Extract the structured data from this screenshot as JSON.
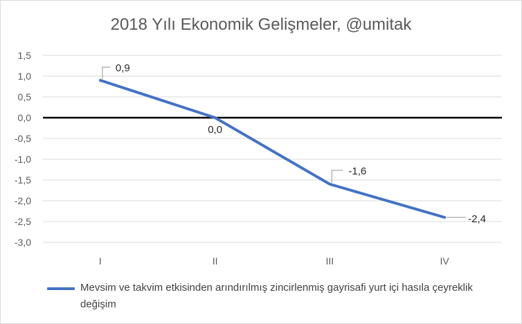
{
  "chart_data": {
    "type": "line",
    "title": "2018 Yılı Ekonomik  Gelişmeler, @umitak",
    "categories": [
      "I",
      "II",
      "III",
      "IV"
    ],
    "series": [
      {
        "name": "Mevsim ve takvim etkisinden arındırılmış zincirlenmiş gayrisafi yurt içi hasıla çeyreklik değişim",
        "values": [
          0.9,
          0.0,
          -1.6,
          -2.4
        ],
        "value_labels": [
          "0,9",
          "0,0",
          "-1,6",
          "-2,4"
        ],
        "color": "#4472c4"
      }
    ],
    "ylim": [
      -3.0,
      1.5
    ],
    "yticks": [
      1.5,
      1.0,
      0.5,
      0.0,
      -0.5,
      -1.0,
      -1.5,
      -2.0,
      -2.5,
      -3.0
    ],
    "ytick_labels": [
      "1,5",
      "1,0",
      "0,5",
      "0,0",
      "-0,5",
      "-1,0",
      "-1,5",
      "-2,0",
      "-2,5",
      "-3,0"
    ],
    "grid": true,
    "zero_line_color": "#000000",
    "grid_color": "#d9d9d9",
    "legend_position": "bottom"
  }
}
